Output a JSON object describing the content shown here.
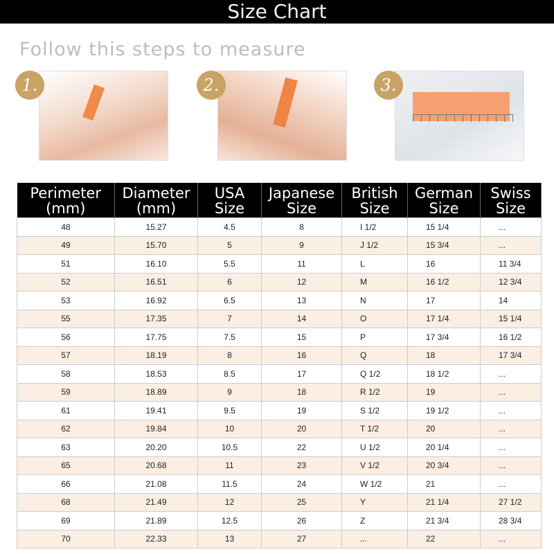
{
  "title": "Size Chart",
  "subtitle": "Follow this steps to measure",
  "steps": [
    {
      "label": "1."
    },
    {
      "label": "2."
    },
    {
      "label": "3."
    }
  ],
  "colors": {
    "header_bg": "#000000",
    "stripe": "#fbeee3",
    "badge": "#c9a265"
  },
  "table": {
    "headers": [
      [
        "Perimeter",
        "(mm)"
      ],
      [
        "Diameter",
        "(mm)"
      ],
      [
        "USA",
        "Size"
      ],
      [
        "Japanese",
        "Size"
      ],
      [
        "British",
        "Size"
      ],
      [
        "German",
        "Size"
      ],
      [
        "Swiss",
        "Size"
      ]
    ],
    "rows": [
      [
        "48",
        "15.27",
        "4.5",
        "8",
        "I 1/2",
        "15 1/4",
        "..."
      ],
      [
        "49",
        "15.70",
        "5",
        "9",
        "J 1/2",
        "15 3/4",
        "..."
      ],
      [
        "51",
        "16.10",
        "5.5",
        "11",
        "L",
        "16",
        "11 3/4"
      ],
      [
        "52",
        "16.51",
        "6",
        "12",
        "M",
        "16 1/2",
        "12 3/4"
      ],
      [
        "53",
        "16.92",
        "6.5",
        "13",
        "N",
        "17",
        "14"
      ],
      [
        "55",
        "17.35",
        "7",
        "14",
        "O",
        "17 1/4",
        "15 1/4"
      ],
      [
        "56",
        "17.75",
        "7.5",
        "15",
        "P",
        "17 3/4",
        "16 1/2"
      ],
      [
        "57",
        "18.19",
        "8",
        "16",
        "Q",
        "18",
        "17 3/4"
      ],
      [
        "58",
        "18.53",
        "8.5",
        "17",
        "Q 1/2",
        "18 1/2",
        "..."
      ],
      [
        "59",
        "18.89",
        "9",
        "18",
        "R 1/2",
        "19",
        "..."
      ],
      [
        "61",
        "19.41",
        "9.5",
        "19",
        "S 1/2",
        "19 1/2",
        "..."
      ],
      [
        "62",
        "19.84",
        "10",
        "20",
        "T 1/2",
        "20",
        "..."
      ],
      [
        "63",
        "20.20",
        "10.5",
        "22",
        "U 1/2",
        "20 1/4",
        "..."
      ],
      [
        "65",
        "20.68",
        "11",
        "23",
        "V 1/2",
        "20 3/4",
        "..."
      ],
      [
        "66",
        "21.08",
        "11.5",
        "24",
        "W 1/2",
        "21",
        "..."
      ],
      [
        "68",
        "21.49",
        "12",
        "25",
        "Y",
        "21 1/4",
        "27 1/2"
      ],
      [
        "69",
        "21.89",
        "12.5",
        "26",
        "Z",
        "21 3/4",
        "28 3/4"
      ],
      [
        "70",
        "22.33",
        "13",
        "27",
        "...",
        "22",
        "..."
      ]
    ]
  }
}
